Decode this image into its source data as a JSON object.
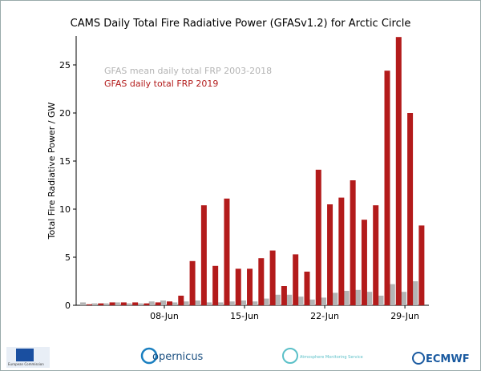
{
  "chart_data": {
    "type": "bar",
    "title": "CAMS Daily Total Fire Radiative Power (GFASv1.2) for Arctic Circle",
    "y_label": "Total Fire Radiative Power / GW",
    "categories": [
      null,
      null,
      null,
      null,
      null,
      null,
      null,
      "08-Jun",
      null,
      null,
      null,
      null,
      null,
      null,
      "15-Jun",
      null,
      null,
      null,
      null,
      null,
      null,
      "22-Jun",
      null,
      null,
      null,
      null,
      null,
      null,
      "29-Jun",
      null
    ],
    "series": [
      {
        "name": "GFAS mean daily total FRP 2003-2018",
        "color": "#b4b4b4",
        "values": [
          0.3,
          0.2,
          0.2,
          0.3,
          0.2,
          0.2,
          0.4,
          0.5,
          0.3,
          0.4,
          0.5,
          0.3,
          0.3,
          0.4,
          0.5,
          0.4,
          0.7,
          1.1,
          1.1,
          0.9,
          0.6,
          0.8,
          1.3,
          1.5,
          1.6,
          1.4,
          1.0,
          2.2,
          1.4,
          2.5
        ]
      },
      {
        "name": "GFAS daily total FRP 2019",
        "color": "#b31b1b",
        "values": [
          0.1,
          0.2,
          0.3,
          0.3,
          0.3,
          0.2,
          0.3,
          0.4,
          1.0,
          4.6,
          10.4,
          4.1,
          11.1,
          3.8,
          3.8,
          4.9,
          5.7,
          2.0,
          5.3,
          3.5,
          14.1,
          10.5,
          11.2,
          13.0,
          8.9,
          10.4,
          24.4,
          27.9,
          20.0,
          8.3
        ]
      }
    ],
    "ylim": [
      0,
      28
    ],
    "yticks": [
      0,
      5,
      10,
      15,
      20,
      25
    ]
  },
  "footer": {
    "logos": [
      "European Commission",
      "opernicus",
      "Atmosphere Monitoring Service",
      "ECMWF"
    ]
  }
}
